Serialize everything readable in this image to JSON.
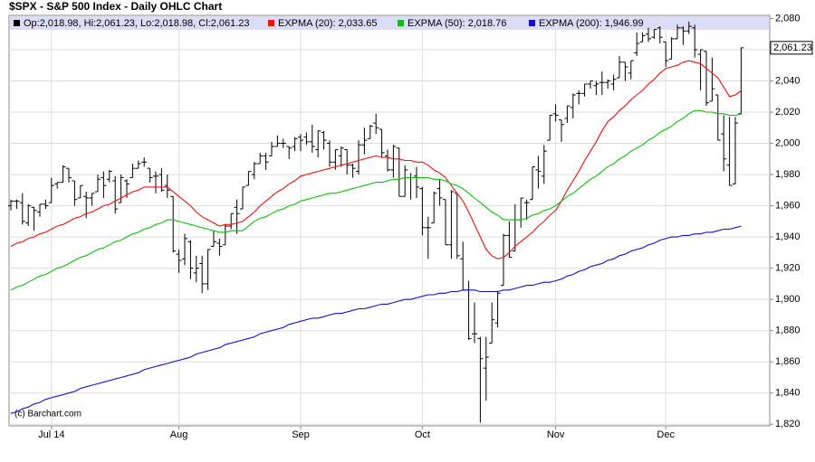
{
  "chart_data": {
    "type": "ohlc",
    "title": "$SPX - S&P 500 Index - Daily OHLC Chart",
    "annotation": "(c) Barchart.com",
    "grid": true,
    "ylim": [
      1819,
      2082
    ],
    "yticks": [
      {
        "value": 1820,
        "label": "1,820"
      },
      {
        "value": 1840,
        "label": "1,840"
      },
      {
        "value": 1860,
        "label": "1,860"
      },
      {
        "value": 1880,
        "label": "1,880"
      },
      {
        "value": 1900,
        "label": "1,900"
      },
      {
        "value": 1920,
        "label": "1,920"
      },
      {
        "value": 1940,
        "label": "1,940"
      },
      {
        "value": 1960,
        "label": "1,960"
      },
      {
        "value": 1980,
        "label": "1,980"
      },
      {
        "value": 2000,
        "label": "2,000"
      },
      {
        "value": 2020,
        "label": "2,020"
      },
      {
        "value": 2040,
        "label": "2,040"
      },
      {
        "value": 2060,
        "label": "2,060"
      },
      {
        "value": 2080,
        "label": "2,080"
      }
    ],
    "last_price": {
      "value": 2061.23,
      "label": "2,061.23"
    },
    "categories": [
      null,
      null,
      null,
      null,
      null,
      null,
      null,
      "Jul 14",
      null,
      null,
      null,
      null,
      null,
      null,
      null,
      null,
      null,
      null,
      null,
      null,
      null,
      null,
      null,
      null,
      null,
      null,
      null,
      null,
      null,
      "Aug",
      null,
      null,
      null,
      null,
      null,
      null,
      null,
      null,
      null,
      null,
      null,
      null,
      null,
      null,
      null,
      null,
      null,
      null,
      null,
      null,
      "Sep",
      null,
      null,
      null,
      null,
      null,
      null,
      null,
      null,
      null,
      null,
      null,
      null,
      null,
      null,
      null,
      null,
      null,
      null,
      null,
      null,
      "Oct",
      null,
      null,
      null,
      null,
      null,
      null,
      null,
      null,
      null,
      null,
      null,
      null,
      null,
      null,
      null,
      null,
      null,
      null,
      null,
      null,
      null,
      null,
      "Nov",
      null,
      null,
      null,
      null,
      null,
      null,
      null,
      null,
      null,
      null,
      null,
      null,
      null,
      null,
      null,
      null,
      null,
      null,
      "Dec",
      null,
      null,
      null,
      null,
      null,
      null,
      null,
      null,
      null,
      null,
      null,
      null,
      null
    ],
    "ohlc": {
      "name": "Op:2,018.98, Hi:2,061.23, Lo:2,018.98, Cl:2,061.23",
      "color": "#000000",
      "open": [
        1960,
        1963,
        1962,
        1949,
        1959,
        1956,
        1961,
        1962,
        1974,
        1975,
        1984,
        1976,
        1965,
        1966,
        1965,
        1969,
        1978,
        1977,
        1976,
        1962,
        1976,
        1978,
        1984,
        1988,
        1984,
        1979,
        1980,
        1973,
        1966,
        1929,
        1926,
        1937,
        1917,
        1923,
        1910,
        1934,
        1936,
        1935,
        1947,
        1959,
        1958,
        1973,
        1980,
        1987,
        1992,
        1992,
        1998,
        2000,
        1998,
        1998,
        2004,
        2004,
        2001,
        1996,
        2007,
        2000,
        1988,
        1992,
        1996,
        1986,
        1982,
        1999,
        2003,
        2013,
        2009,
        1992,
        1983,
        1997,
        1966,
        1978,
        1979,
        1971,
        1946,
        1949,
        1971,
        1964,
        1935,
        1968,
        1926,
        1906,
        1878,
        1875,
        1856,
        1872,
        1885,
        1909,
        1941,
        1931,
        1951,
        1962,
        1964,
        1983,
        1979,
        2002,
        2019,
        2015,
        2016,
        2023,
        2032,
        2032,
        2038,
        2037,
        2039,
        2039,
        2038,
        2042,
        2052,
        2045,
        2058,
        2065,
        2070,
        2068,
        2074,
        2065,
        2054,
        2067,
        2074,
        2072,
        2074,
        2057,
        2059,
        2027,
        2031,
        2006,
        1986,
        1974,
        2018.98
      ],
      "high": [
        1964,
        1964,
        1968,
        1961,
        1959,
        1961,
        1964,
        1978,
        1975,
        1986,
        1984,
        1976,
        1973,
        1969,
        1968,
        1980,
        1982,
        1983,
        1979,
        1980,
        1977,
        1987,
        1989,
        1991,
        1984,
        1982,
        1984,
        1980,
        1966,
        1932,
        1942,
        1938,
        1928,
        1928,
        1932,
        1944,
        1939,
        1948,
        1955,
        1964,
        1972,
        1982,
        1988,
        1994,
        1994,
        2001,
        2005,
        2003,
        1998,
        2004,
        2006,
        2007,
        2012,
        2008,
        2008,
        2002,
        1996,
        1998,
        1996,
        1987,
        2002,
        2010,
        2012,
        2019,
        2009,
        1996,
        1999,
        1997,
        1986,
        1981,
        1985,
        1972,
        1953,
        1969,
        1977,
        1964,
        1970,
        1968,
        1937,
        1912,
        1898,
        1876,
        1876,
        1898,
        1905,
        1942,
        1950,
        1961,
        1965,
        1964,
        1985,
        1992,
        1999,
        2018,
        2025,
        2015,
        2024,
        2032,
        2034,
        2038,
        2040,
        2040,
        2046,
        2041,
        2044,
        2056,
        2052,
        2053,
        2071,
        2071,
        2074,
        2073,
        2075,
        2065,
        2068,
        2076,
        2075,
        2078,
        2076,
        2060,
        2059,
        2055,
        2031,
        2018,
        2017,
        2017,
        2061.23
      ],
      "low": [
        1957,
        1958,
        1948,
        1947,
        1944,
        1953,
        1958,
        1962,
        1971,
        1975,
        1975,
        1960,
        1965,
        1952,
        1960,
        1969,
        1965,
        1975,
        1955,
        1962,
        1965,
        1978,
        1984,
        1985,
        1975,
        1968,
        1969,
        1965,
        1930,
        1917,
        1922,
        1913,
        1911,
        1904,
        1906,
        1934,
        1928,
        1935,
        1945,
        1942,
        1958,
        1973,
        1977,
        1987,
        1983,
        1992,
        1998,
        1997,
        1990,
        1995,
        1995,
        1999,
        1994,
        1991,
        1996,
        1985,
        1983,
        1985,
        1980,
        1978,
        1980,
        1993,
        2003,
        2006,
        1991,
        1982,
        1978,
        1966,
        1966,
        1964,
        1965,
        1941,
        1926,
        1949,
        1960,
        1935,
        1926,
        1926,
        1906,
        1874,
        1872,
        1821,
        1835,
        1872,
        1882,
        1909,
        1927,
        1931,
        1946,
        1951,
        1964,
        1971,
        1974,
        2002,
        2014,
        2001,
        2013,
        2016,
        2025,
        2030,
        2035,
        2031,
        2031,
        2035,
        2034,
        2042,
        2040,
        2041,
        2056,
        2065,
        2065,
        2067,
        2064,
        2049,
        2054,
        2067,
        2063,
        2070,
        2055,
        2034,
        2024,
        2027,
        2002,
        1982,
        1973,
        1974,
        2018.98
      ],
      "close": [
        1963,
        1963,
        1950,
        1960,
        1957,
        1961,
        1960,
        1973,
        1975,
        1985,
        1978,
        1964,
        1973,
        1965,
        1968,
        1977,
        1973,
        1982,
        1958,
        1978,
        1974,
        1984,
        1987,
        1988,
        1978,
        1979,
        1970,
        1970,
        1931,
        1925,
        1939,
        1920,
        1920,
        1910,
        1932,
        1937,
        1934,
        1947,
        1955,
        1955,
        1972,
        1982,
        1987,
        1992,
        1988,
        1998,
        2000,
        2000,
        1997,
        2003,
        2002,
        2001,
        1998,
        2008,
        2002,
        1988,
        1996,
        1997,
        1986,
        1984,
        1999,
        2002,
        2011,
        2010,
        1994,
        1983,
        1998,
        1966,
        1983,
        1978,
        1972,
        1946,
        1946,
        1968,
        1965,
        1935,
        1969,
        1928,
        1906,
        1875,
        1878,
        1862,
        1863,
        1887,
        1904,
        1941,
        1927,
        1951,
        1965,
        1962,
        1985,
        1982,
        1995,
        2018,
        2018,
        2012,
        2024,
        2031,
        2032,
        2038,
        2040,
        2038,
        2039,
        2040,
        2041,
        2052,
        2049,
        2053,
        2064,
        2069,
        2067,
        2073,
        2068,
        2053,
        2067,
        2074,
        2072,
        2075,
        2060,
        2060,
        2026,
        2035,
        2002,
        1990,
        1973,
        2013,
        2061.23
      ]
    },
    "series": [
      {
        "name": "EXPMA (20): 2,033.65",
        "color": "#ee1111",
        "values": [
          1934,
          1936,
          1937,
          1939,
          1940,
          1942,
          1943,
          1945,
          1947,
          1948,
          1950,
          1952,
          1953,
          1955,
          1956,
          1958,
          1960,
          1961,
          1963,
          1965,
          1967,
          1969,
          1970,
          1972,
          1972,
          1972,
          1972,
          1972,
          1969,
          1966,
          1963,
          1960,
          1956,
          1953,
          1951,
          1949,
          1947,
          1948,
          1948,
          1949,
          1950,
          1953,
          1956,
          1960,
          1963,
          1966,
          1969,
          1971,
          1974,
          1976,
          1979,
          1980,
          1981,
          1982,
          1983,
          1984,
          1985,
          1986,
          1987,
          1988,
          1989,
          1990,
          1991,
          1992,
          1991,
          1991,
          1990,
          1990,
          1989,
          1989,
          1988,
          1988,
          1986,
          1983,
          1981,
          1978,
          1973,
          1968,
          1963,
          1956,
          1948,
          1940,
          1932,
          1928,
          1926,
          1927,
          1930,
          1934,
          1937,
          1940,
          1943,
          1947,
          1950,
          1954,
          1957,
          1963,
          1970,
          1976,
          1982,
          1989,
          1995,
          2001,
          2008,
          2014,
          2017,
          2021,
          2024,
          2028,
          2031,
          2034,
          2038,
          2041,
          2045,
          2048,
          2049,
          2050,
          2052,
          2053,
          2052,
          2051,
          2048,
          2045,
          2042,
          2036,
          2030,
          2031,
          2033.65
        ]
      },
      {
        "name": "EXPMA (50): 2,018.76",
        "color": "#11bb11",
        "values": [
          1906,
          1908,
          1909,
          1911,
          1913,
          1915,
          1916,
          1918,
          1920,
          1921,
          1923,
          1925,
          1927,
          1928,
          1930,
          1932,
          1933,
          1935,
          1937,
          1938,
          1940,
          1942,
          1943,
          1945,
          1946,
          1948,
          1949,
          1951,
          1951,
          1950,
          1949,
          1948,
          1947,
          1946,
          1945,
          1944,
          1943,
          1943,
          1944,
          1944,
          1944,
          1947,
          1950,
          1952,
          1953,
          1955,
          1957,
          1958,
          1960,
          1961,
          1963,
          1964,
          1965,
          1966,
          1967,
          1968,
          1968,
          1969,
          1970,
          1971,
          1972,
          1973,
          1974,
          1975,
          1975,
          1976,
          1977,
          1977,
          1978,
          1978,
          1978,
          1978,
          1978,
          1977,
          1977,
          1976,
          1974,
          1973,
          1971,
          1968,
          1965,
          1962,
          1959,
          1956,
          1954,
          1951,
          1951,
          1951,
          1951,
          1952,
          1954,
          1955,
          1957,
          1958,
          1960,
          1963,
          1966,
          1968,
          1971,
          1974,
          1977,
          1979,
          1982,
          1985,
          1987,
          1990,
          1992,
          1995,
          1997,
          1999,
          2002,
          2004,
          2007,
          2009,
          2011,
          2014,
          2016,
          2019,
          2021,
          2021,
          2020,
          2020,
          2019,
          2019,
          2018,
          2018,
          2018.76
        ]
      },
      {
        "name": "EXPMA (200): 1,946.99",
        "color": "#1111cc",
        "values": [
          1827,
          1828,
          1830,
          1831,
          1833,
          1834,
          1836,
          1837,
          1838,
          1839,
          1840,
          1841,
          1843,
          1844,
          1845,
          1846,
          1847,
          1848,
          1849,
          1850,
          1851,
          1852,
          1853,
          1855,
          1856,
          1857,
          1858,
          1859,
          1860,
          1861,
          1862,
          1863,
          1865,
          1866,
          1867,
          1868,
          1869,
          1871,
          1872,
          1873,
          1874,
          1875,
          1876,
          1878,
          1879,
          1880,
          1881,
          1882,
          1884,
          1885,
          1886,
          1887,
          1888,
          1888,
          1889,
          1890,
          1891,
          1891,
          1892,
          1893,
          1894,
          1894,
          1895,
          1896,
          1897,
          1897,
          1898,
          1899,
          1900,
          1900,
          1901,
          1902,
          1903,
          1903,
          1904,
          1904,
          1905,
          1905,
          1906,
          1906,
          1906,
          1905,
          1905,
          1905,
          1905,
          1906,
          1906,
          1907,
          1908,
          1909,
          1909,
          1910,
          1911,
          1911,
          1912,
          1913,
          1915,
          1916,
          1918,
          1919,
          1921,
          1922,
          1923,
          1925,
          1926,
          1928,
          1929,
          1931,
          1932,
          1933,
          1935,
          1936,
          1938,
          1939,
          1940,
          1940,
          1941,
          1941,
          1942,
          1942,
          1943,
          1943,
          1944,
          1945,
          1945,
          1946,
          1946.99
        ]
      }
    ]
  }
}
